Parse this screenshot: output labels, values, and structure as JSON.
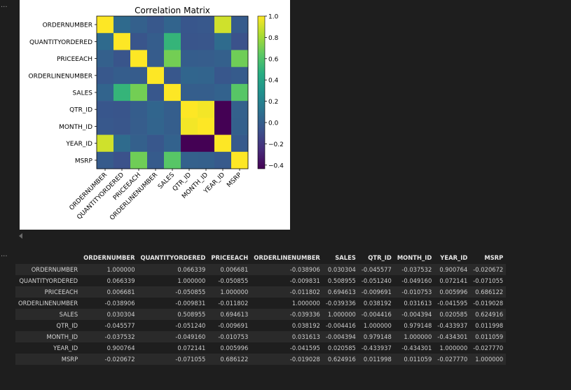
{
  "cells": {
    "markers": [
      "...",
      "..."
    ]
  },
  "chart_data": {
    "type": "heatmap",
    "title": "Correlation Matrix",
    "labels": [
      "ORDERNUMBER",
      "QUANTITYORDERED",
      "PRICEEACH",
      "ORDERLINENUMBER",
      "SALES",
      "QTR_ID",
      "MONTH_ID",
      "YEAR_ID",
      "MSRP"
    ],
    "matrix": [
      [
        1.0,
        0.066339,
        0.006681,
        -0.038906,
        0.030304,
        -0.045577,
        -0.037532,
        0.900764,
        -0.020672
      ],
      [
        0.066339,
        1.0,
        -0.050855,
        -0.009831,
        0.508955,
        -0.05124,
        -0.04916,
        0.072141,
        -0.071055
      ],
      [
        0.006681,
        -0.050855,
        1.0,
        -0.011802,
        0.694613,
        -0.009691,
        -0.010753,
        0.005996,
        0.686122
      ],
      [
        -0.038906,
        -0.009831,
        -0.011802,
        1.0,
        -0.039336,
        0.038192,
        0.031613,
        -0.041595,
        -0.019028
      ],
      [
        0.030304,
        0.508955,
        0.694613,
        -0.039336,
        1.0,
        -0.004416,
        -0.004394,
        0.020585,
        0.624916
      ],
      [
        -0.045577,
        -0.05124,
        -0.009691,
        0.038192,
        -0.004416,
        1.0,
        0.979148,
        -0.433937,
        0.011998
      ],
      [
        -0.037532,
        -0.04916,
        -0.010753,
        0.031613,
        -0.004394,
        0.979148,
        1.0,
        -0.434301,
        0.011059
      ],
      [
        0.900764,
        0.072141,
        0.005996,
        -0.041595,
        0.020585,
        -0.433937,
        -0.434301,
        1.0,
        -0.02777
      ],
      [
        -0.020672,
        -0.071055,
        0.686122,
        -0.019028,
        0.624916,
        0.011998,
        0.011059,
        -0.02777,
        1.0
      ]
    ],
    "colorbar": {
      "vmin": -0.434301,
      "vmax": 1.0,
      "ticks": [
        1.0,
        0.8,
        0.6,
        0.4,
        0.2,
        0.0,
        -0.2,
        -0.4
      ],
      "tick_labels": [
        "1.0",
        "0.8",
        "0.6",
        "0.4",
        "0.2",
        "0.0",
        "−0.2",
        "−0.4"
      ]
    },
    "colormap": "viridis"
  },
  "table": {
    "columns": [
      "ORDERNUMBER",
      "QUANTITYORDERED",
      "PRICEEACH",
      "ORDERLINENUMBER",
      "SALES",
      "QTR_ID",
      "MONTH_ID",
      "YEAR_ID",
      "MSRP"
    ],
    "rows": [
      {
        "label": "ORDERNUMBER",
        "values": [
          "1.000000",
          "0.066339",
          "0.006681",
          "-0.038906",
          "0.030304",
          "-0.045577",
          "-0.037532",
          "0.900764",
          "-0.020672"
        ]
      },
      {
        "label": "QUANTITYORDERED",
        "values": [
          "0.066339",
          "1.000000",
          "-0.050855",
          "-0.009831",
          "0.508955",
          "-0.051240",
          "-0.049160",
          "0.072141",
          "-0.071055"
        ]
      },
      {
        "label": "PRICEEACH",
        "values": [
          "0.006681",
          "-0.050855",
          "1.000000",
          "-0.011802",
          "0.694613",
          "-0.009691",
          "-0.010753",
          "0.005996",
          "0.686122"
        ]
      },
      {
        "label": "ORDERLINENUMBER",
        "values": [
          "-0.038906",
          "-0.009831",
          "-0.011802",
          "1.000000",
          "-0.039336",
          "0.038192",
          "0.031613",
          "-0.041595",
          "-0.019028"
        ]
      },
      {
        "label": "SALES",
        "values": [
          "0.030304",
          "0.508955",
          "0.694613",
          "-0.039336",
          "1.000000",
          "-0.004416",
          "-0.004394",
          "0.020585",
          "0.624916"
        ]
      },
      {
        "label": "QTR_ID",
        "values": [
          "-0.045577",
          "-0.051240",
          "-0.009691",
          "0.038192",
          "-0.004416",
          "1.000000",
          "0.979148",
          "-0.433937",
          "0.011998"
        ]
      },
      {
        "label": "MONTH_ID",
        "values": [
          "-0.037532",
          "-0.049160",
          "-0.010753",
          "0.031613",
          "-0.004394",
          "0.979148",
          "1.000000",
          "-0.434301",
          "0.011059"
        ]
      },
      {
        "label": "YEAR_ID",
        "values": [
          "0.900764",
          "0.072141",
          "0.005996",
          "-0.041595",
          "0.020585",
          "-0.433937",
          "-0.434301",
          "1.000000",
          "-0.027770"
        ]
      },
      {
        "label": "MSRP",
        "values": [
          "-0.020672",
          "-0.071055",
          "0.686122",
          "-0.019028",
          "0.624916",
          "0.011998",
          "0.011059",
          "-0.027770",
          "1.000000"
        ]
      }
    ]
  }
}
